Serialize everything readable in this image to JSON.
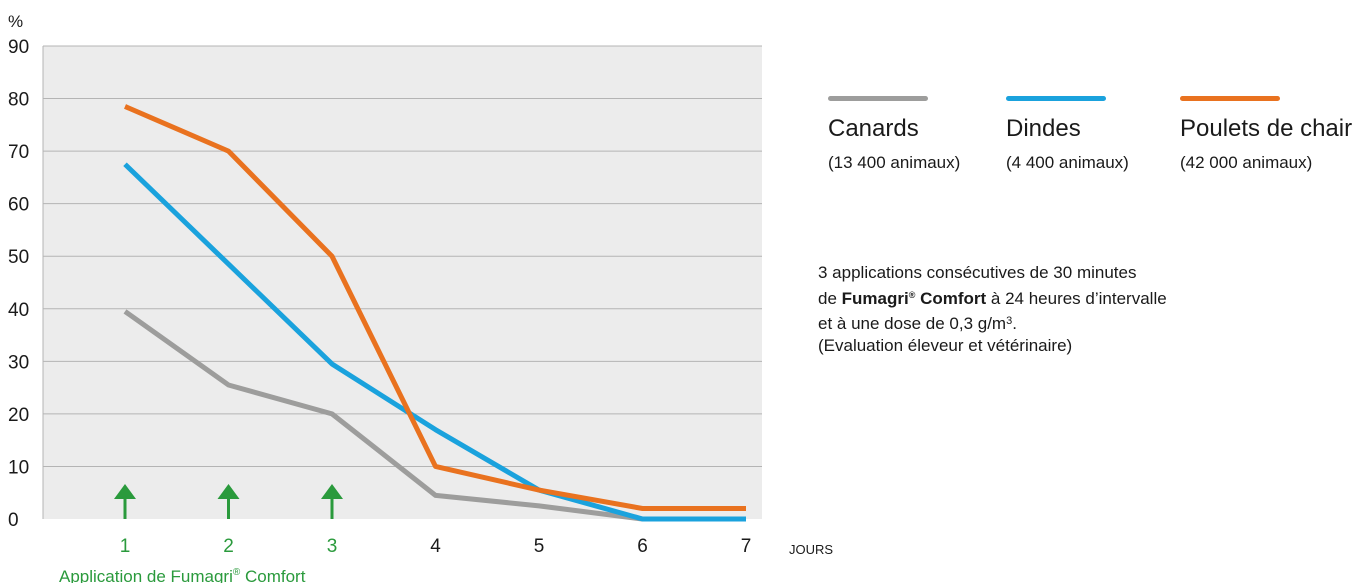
{
  "chart_data": {
    "type": "line",
    "ylabel": "%",
    "xlabel": "JOURS",
    "ylim": [
      0,
      90
    ],
    "yticks": [
      0,
      10,
      20,
      30,
      40,
      50,
      60,
      70,
      80,
      90
    ],
    "x": [
      1,
      2,
      3,
      4,
      5,
      6,
      7
    ],
    "grid": true,
    "series": [
      {
        "name": "Canards",
        "detail": "(13 400 animaux)",
        "color": "#9d9d9c",
        "values": [
          39.5,
          25.5,
          20,
          4.5,
          2.5,
          0,
          0
        ]
      },
      {
        "name": "Dindes",
        "detail": "(4 400 animaux)",
        "color": "#1aa2dd",
        "values": [
          67.5,
          48.5,
          29.5,
          17,
          5.5,
          0,
          0
        ]
      },
      {
        "name": "Poulets de chair",
        "detail": "(42 000 animaux)",
        "color": "#e9721f",
        "values": [
          78.5,
          70,
          50,
          10,
          5.5,
          2,
          2
        ]
      }
    ],
    "markers": {
      "days": [
        1,
        2,
        3
      ],
      "label": "Application de Fumagri",
      "label_sup": "®",
      "label_end": " Comfort",
      "color": "#2a9a3c"
    },
    "colors": {
      "plot_bg": "#ececec",
      "grid": "#b4b4b4"
    }
  },
  "annotation": {
    "line1": "3 applications consécutives de 30 minutes",
    "line2_pre": "de ",
    "line2_bold": "Fumagri",
    "line2_sup": "®",
    "line2_bold2": " Comfort",
    "line2_post": " à 24 heures d’intervalle",
    "line3_pre": "et à une dose de 0,3 g/m",
    "line3_sup": "3",
    "line3_post": ".",
    "line4": "(Evaluation éleveur et vétérinaire)"
  }
}
